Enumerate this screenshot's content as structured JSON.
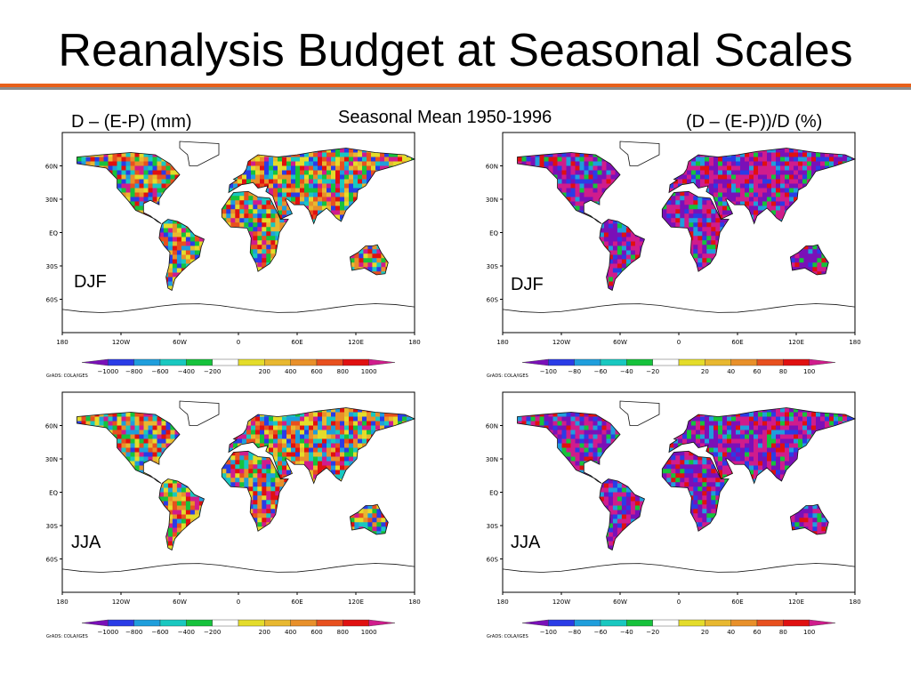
{
  "slide": {
    "title": "Reanalysis Budget at Seasonal Scales",
    "center_header": "Seasonal Mean 1950-1996",
    "left_header": "D – (E-P) (mm)",
    "right_header": "(D – (E-P))/D (%)"
  },
  "colors": {
    "rule_orange": "#e8601a",
    "rule_gray": "#8c8c8c",
    "scale": [
      "#7a10b8",
      "#2a3ce6",
      "#1f9edc",
      "#19c8c0",
      "#16c23c",
      "#ffffff",
      "#e4dc2a",
      "#e8b830",
      "#e8902a",
      "#e8501e",
      "#e01010",
      "#d01c8c"
    ]
  },
  "axes": {
    "lat_labels": [
      "60N",
      "30N",
      "EQ",
      "30S",
      "60S"
    ],
    "lat_values": [
      60,
      30,
      0,
      -30,
      -60
    ],
    "lon_labels": [
      "180",
      "120W",
      "60W",
      "0",
      "60E",
      "120E",
      "180"
    ],
    "lon_values": [
      -180,
      -120,
      -60,
      0,
      60,
      120,
      180
    ]
  },
  "maps": [
    {
      "id": "mm-djf",
      "variable": "D – (E-P) (mm)",
      "season": "DJF",
      "palette": "mm",
      "colorbar": [
        "−1000",
        "−800",
        "−600",
        "−400",
        "−200",
        "200",
        "400",
        "600",
        "800",
        "1000"
      ],
      "credit": "GrADS: COLA/IGES"
    },
    {
      "id": "pct-djf",
      "variable": "(D – (E-P))/D (%)",
      "season": "DJF",
      "palette": "pct",
      "colorbar": [
        "−100",
        "−80",
        "−60",
        "−40",
        "−20",
        "20",
        "40",
        "60",
        "80",
        "100"
      ],
      "credit": "GrADS: COLA/IGES"
    },
    {
      "id": "mm-jja",
      "variable": "D – (E-P) (mm)",
      "season": "JJA",
      "palette": "mm",
      "colorbar": [
        "−1000",
        "−800",
        "−600",
        "−400",
        "−200",
        "200",
        "400",
        "600",
        "800",
        "1000"
      ],
      "credit": "GrADS: COLA/IGES"
    },
    {
      "id": "pct-jja",
      "variable": "(D – (E-P))/D (%)",
      "season": "JJA",
      "palette": "pct",
      "colorbar": [
        "−100",
        "−80",
        "−60",
        "−40",
        "−20",
        "20",
        "40",
        "60",
        "80",
        "100"
      ],
      "credit": "GrADS: COLA/IGES"
    }
  ]
}
